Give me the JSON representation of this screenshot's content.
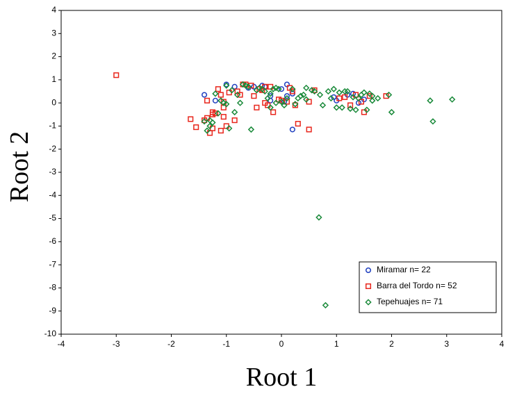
{
  "chart_data": {
    "type": "scatter",
    "x_label": "Root 1",
    "y_label": "Root 2",
    "xlim": [
      -4,
      4
    ],
    "xticks": [
      -4,
      -3,
      -2,
      -1,
      0,
      1,
      2,
      3,
      4
    ],
    "ylim": [
      -10,
      4
    ],
    "yticks": [
      -10,
      -9,
      -8,
      -7,
      -6,
      -5,
      -4,
      -3,
      -2,
      -1,
      0,
      1,
      2,
      3,
      4
    ],
    "legend": "bottom-right",
    "series": [
      {
        "name": "Miramar n= 22",
        "color": "#1f3fbf",
        "marker": "circle",
        "x": [
          -1.4,
          -1.0,
          -1.2,
          -0.85,
          -0.5,
          -0.35,
          -0.3,
          -0.2,
          -0.2,
          0,
          0.1,
          0.1,
          0.2,
          0.05,
          0.2,
          0.95,
          1.0,
          1.2,
          1.3,
          1.4,
          1.5,
          -0.6
        ],
        "y": [
          0.35,
          0.8,
          0.1,
          0.7,
          0.7,
          0.75,
          0.7,
          0.3,
          0.1,
          0.6,
          0.8,
          0.3,
          0.4,
          0.05,
          -1.15,
          0.25,
          0.1,
          0.35,
          0.4,
          0.0,
          0.15,
          0.65
        ]
      },
      {
        "name": "Barra del Tordo n= 52",
        "color": "#e8261c",
        "marker": "square",
        "x": [
          -3,
          -1.65,
          -1.55,
          -1.4,
          -1.35,
          -1.35,
          -1.3,
          -1.25,
          -1.25,
          -1.25,
          -1.2,
          -1.15,
          -1.1,
          -1.1,
          -1.05,
          -1.05,
          -1.05,
          -1.0,
          -0.95,
          -0.85,
          -0.8,
          -0.75,
          -0.7,
          -0.65,
          -0.55,
          -0.5,
          -0.45,
          -0.4,
          -0.35,
          -0.3,
          -0.25,
          -0.2,
          -0.15,
          -0.05,
          0.0,
          0.1,
          0.15,
          0.2,
          0.25,
          0.3,
          0.5,
          0.5,
          0.6,
          1.05,
          1.15,
          1.25,
          1.35,
          1.45,
          1.5,
          1.6,
          1.9,
          -0.3
        ],
        "y": [
          1.2,
          -0.7,
          -1.05,
          -0.75,
          -0.65,
          0.1,
          -1.3,
          -1.1,
          -0.5,
          -0.4,
          -0.45,
          0.6,
          0.35,
          -1.2,
          -0.2,
          -0.6,
          0.05,
          -1.0,
          0.45,
          -0.75,
          0.5,
          0.35,
          0.8,
          0.8,
          0.75,
          0.3,
          -0.2,
          0.6,
          0.55,
          0.0,
          -0.1,
          0.7,
          -0.4,
          0.15,
          0.1,
          0.05,
          0.65,
          0.5,
          -0.1,
          -0.9,
          0.05,
          -1.15,
          0.55,
          0.2,
          0.25,
          -0.1,
          0.35,
          0.05,
          -0.4,
          0.3,
          0.3,
          0.7
        ]
      },
      {
        "name": "Tepehuajes n= 71",
        "color": "#1a8a3a",
        "marker": "diamond",
        "x": [
          0.68,
          0.8,
          2.75,
          3.1,
          2.7,
          2.0,
          1.95,
          1.75,
          1.65,
          1.6,
          1.55,
          1.45,
          1.4,
          1.35,
          1.3,
          1.25,
          1.2,
          1.15,
          1.1,
          1.05,
          1.0,
          0.95,
          0.85,
          0.75,
          0.7,
          0.6,
          0.45,
          0.4,
          0.35,
          0.3,
          0.25,
          0.2,
          0.1,
          0.05,
          0.0,
          -0.05,
          -0.1,
          -0.15,
          -0.2,
          -0.25,
          -0.3,
          -0.35,
          -0.4,
          -0.45,
          -0.55,
          -0.6,
          -0.65,
          -0.7,
          -0.75,
          -0.8,
          -0.85,
          -0.9,
          -0.95,
          -1.0,
          -1.05,
          -1.1,
          -1.15,
          -1.2,
          -1.25,
          -1.3,
          -1.3,
          -1.35,
          -1.4,
          -1.0,
          -0.2,
          0.45,
          0.9,
          1.5,
          1.65,
          -0.1,
          0.55
        ],
        "y": [
          -4.95,
          -8.75,
          -0.8,
          0.15,
          0.1,
          -0.4,
          0.35,
          0.2,
          0.1,
          0.4,
          -0.3,
          0.35,
          0.2,
          -0.3,
          0.25,
          -0.25,
          0.5,
          0.5,
          -0.2,
          0.45,
          -0.2,
          0.6,
          0.5,
          -0.1,
          0.35,
          0.5,
          0.65,
          0.35,
          0.3,
          0.2,
          -0.05,
          0.6,
          0.2,
          -0.1,
          0.05,
          0.6,
          0.65,
          0.6,
          -0.2,
          0.2,
          0.5,
          0.6,
          0.65,
          0.55,
          -1.15,
          0.7,
          0.75,
          0.8,
          0.0,
          0.35,
          -0.4,
          0.55,
          -1.1,
          0.75,
          0.0,
          0.1,
          -0.45,
          0.4,
          -0.85,
          -1.0,
          -0.75,
          -1.2,
          -0.8,
          -0.05,
          0.4,
          0.15,
          0.2,
          0.45,
          0.3,
          0.0,
          0.55
        ]
      }
    ]
  }
}
